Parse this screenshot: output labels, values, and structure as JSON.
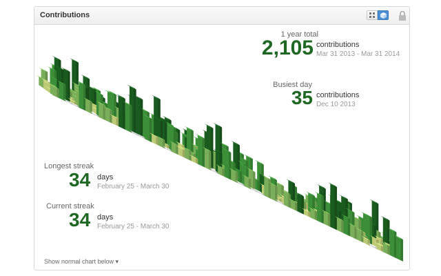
{
  "panel": {
    "title": "Contributions"
  },
  "header": {
    "grid_icon": "grid-icon",
    "iso_icon": "cube-icon",
    "lock_icon": "lock-icon"
  },
  "year_total": {
    "label": "1 year total",
    "value": "2,105",
    "unit": "contributions",
    "range": "Mar 31 2013 - Mar 31 2014"
  },
  "busiest_day": {
    "label": "Busiest day",
    "value": "35",
    "unit": "contributions",
    "range": "Dec 10 2013"
  },
  "longest_streak": {
    "label": "Longest streak",
    "value": "34",
    "unit": "days",
    "range": "February 25 - March 30"
  },
  "current_streak": {
    "label": "Current streak",
    "value": "34",
    "unit": "days",
    "range": "February 25 - March 30"
  },
  "footer": {
    "link": "Show normal chart below ▾"
  },
  "colors": {
    "dark": "#1e6823",
    "mid": "#44a340",
    "light": "#8cc665",
    "pale": "#d6e685",
    "empty": "#eeeeee"
  }
}
